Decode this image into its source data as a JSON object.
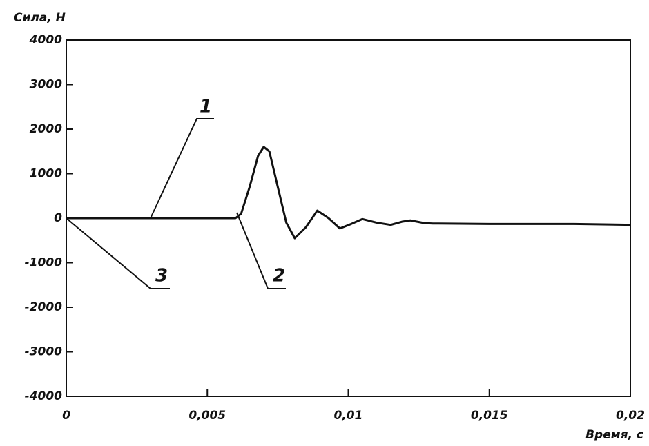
{
  "chart_data": {
    "type": "line",
    "y_label": "Сила, Н",
    "x_label": "Время, с",
    "x": [
      0,
      0.006,
      0.0062,
      0.0065,
      0.0068,
      0.007,
      0.0072,
      0.0075,
      0.0078,
      0.0081,
      0.0085,
      0.0089,
      0.0093,
      0.0097,
      0.0101,
      0.0105,
      0.011,
      0.0115,
      0.0119,
      0.0122,
      0.0127,
      0.013,
      0.015,
      0.018,
      0.02
    ],
    "series": [
      {
        "color": "#111111",
        "values": [
          0,
          0,
          100,
          700,
          1400,
          1600,
          1500,
          700,
          -100,
          -450,
          -200,
          170,
          0,
          -230,
          -130,
          -20,
          -100,
          -150,
          -80,
          -50,
          -110,
          -120,
          -130,
          -130,
          -150
        ]
      }
    ],
    "xlim": [
      0,
      0.02
    ],
    "xticks": [
      0,
      {
        "value": 0.005,
        "label": "0,005"
      },
      {
        "value": 0.01,
        "label": "0,01"
      },
      {
        "value": 0.015,
        "label": "0,015"
      },
      {
        "value": 0.02,
        "label": "0,02"
      }
    ],
    "ylim": [
      -4000,
      4000
    ],
    "yticks": [
      -4000,
      -3000,
      -2000,
      -1000,
      0,
      1000,
      2000,
      3000,
      4000
    ],
    "annotations": [
      "1",
      "2",
      "3"
    ]
  }
}
